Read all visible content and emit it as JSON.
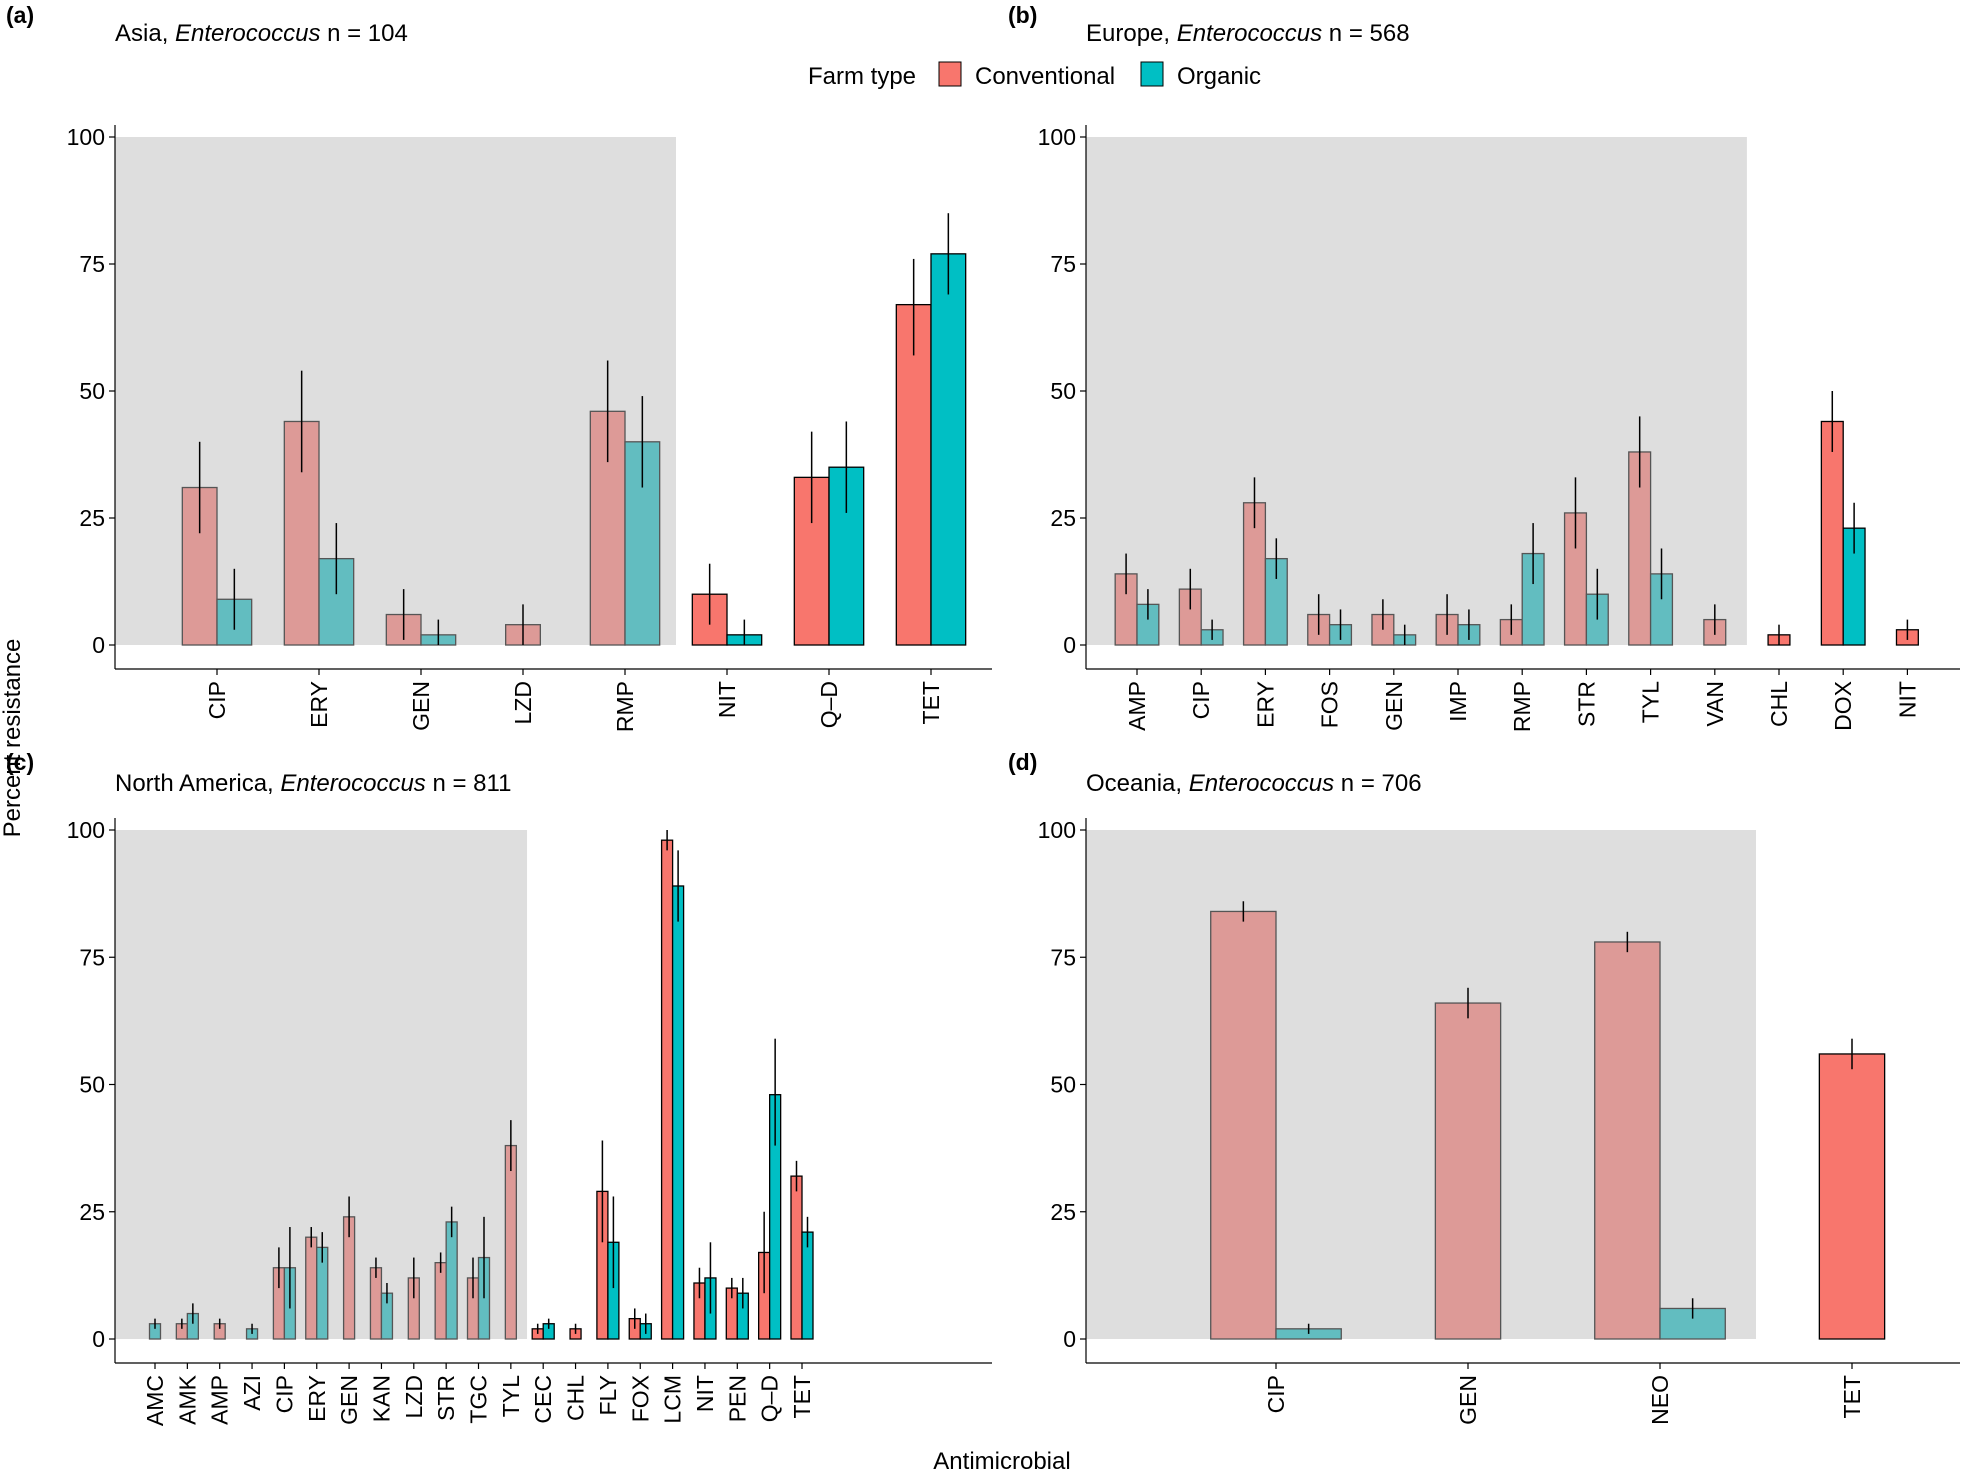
{
  "chart_data": {
    "type": "bar",
    "figure": {
      "ylabel": "Percent resistance",
      "xlabel": "Antimicrobial",
      "legend": {
        "title": "Farm type",
        "placement": "top-center",
        "entries": [
          {
            "name": "Conventional",
            "color": "#F8766D"
          },
          {
            "name": "Organic",
            "color": "#00BFC4"
          }
        ]
      },
      "colors": {
        "conventional": "#F8766D",
        "organic": "#00BFC4",
        "conventional_shaded": "#DD9A97",
        "organic_shaded": "#62BDC0",
        "shade_background": "#DEDEDE"
      }
    },
    "panels": [
      {
        "letter": "(a)",
        "region": "Asia, ",
        "organism": "Enterococcus",
        "n_label": " n = 104",
        "ylim": [
          0,
          100
        ],
        "yticks": [
          0,
          25,
          50,
          75,
          100
        ],
        "shaded_count": 5,
        "categories": [
          "CIP",
          "ERY",
          "GEN",
          "LZD",
          "RMP",
          "NIT",
          "Q–D",
          "TET"
        ],
        "series": [
          {
            "name": "Conventional",
            "values": [
              31,
              44,
              6,
              4,
              46,
              10,
              33,
              67
            ],
            "lower": [
              22,
              34,
              1,
              0,
              36,
              4,
              24,
              57
            ],
            "upper": [
              40,
              54,
              11,
              8,
              56,
              16,
              42,
              76
            ]
          },
          {
            "name": "Organic",
            "values": [
              9,
              17,
              2,
              null,
              40,
              2,
              35,
              77
            ],
            "lower": [
              3,
              10,
              0,
              null,
              31,
              0,
              26,
              69
            ],
            "upper": [
              15,
              24,
              5,
              null,
              49,
              5,
              44,
              85
            ]
          }
        ]
      },
      {
        "letter": "(b)",
        "region": "Europe, ",
        "organism": "Enterococcus",
        "n_label": " n = 568",
        "ylim": [
          0,
          100
        ],
        "yticks": [
          0,
          25,
          50,
          75,
          100
        ],
        "shaded_count": 10,
        "categories": [
          "AMP",
          "CIP",
          "ERY",
          "FOS",
          "GEN",
          "IMP",
          "RMP",
          "STR",
          "TYL",
          "VAN",
          "CHL",
          "DOX",
          "NIT"
        ],
        "series": [
          {
            "name": "Conventional",
            "values": [
              14,
              11,
              28,
              6,
              6,
              6,
              5,
              26,
              38,
              5,
              2,
              44,
              3
            ],
            "lower": [
              10,
              7,
              23,
              2,
              3,
              2,
              2,
              19,
              31,
              2,
              0,
              38,
              1
            ],
            "upper": [
              18,
              15,
              33,
              10,
              9,
              10,
              8,
              33,
              45,
              8,
              4,
              50,
              5
            ]
          },
          {
            "name": "Organic",
            "values": [
              8,
              3,
              17,
              4,
              2,
              4,
              18,
              10,
              14,
              null,
              null,
              23,
              null
            ],
            "lower": [
              5,
              1,
              13,
              1,
              0,
              1,
              12,
              5,
              9,
              null,
              null,
              18,
              null
            ],
            "upper": [
              11,
              5,
              21,
              7,
              4,
              7,
              24,
              15,
              19,
              null,
              null,
              28,
              null
            ]
          }
        ]
      },
      {
        "letter": "(c)",
        "region": "North America, ",
        "organism": "Enterococcus",
        "n_label": " n = 811",
        "ylim": [
          0,
          100
        ],
        "yticks": [
          0,
          25,
          50,
          75,
          100
        ],
        "shaded_count": 12,
        "categories": [
          "AMC",
          "AMK",
          "AMP",
          "AZI",
          "CIP",
          "ERY",
          "GEN",
          "KAN",
          "LZD",
          "STR",
          "TGC",
          "TYL",
          "CEC",
          "CHL",
          "FLY",
          "FOX",
          "LCM",
          "NIT",
          "PEN",
          "Q–D",
          "TET"
        ],
        "series": [
          {
            "name": "Conventional",
            "values": [
              null,
              3,
              3,
              null,
              14,
              20,
              24,
              14,
              12,
              15,
              12,
              38,
              2,
              2,
              29,
              4,
              98,
              11,
              10,
              17,
              32
            ],
            "lower": [
              null,
              2,
              2,
              null,
              10,
              18,
              20,
              12,
              8,
              13,
              8,
              33,
              1,
              1,
              19,
              2,
              96,
              8,
              8,
              9,
              29
            ],
            "upper": [
              null,
              4,
              4,
              null,
              18,
              22,
              28,
              16,
              16,
              17,
              16,
              43,
              3,
              3,
              39,
              6,
              100,
              14,
              12,
              25,
              35
            ]
          },
          {
            "name": "Organic",
            "values": [
              3,
              5,
              null,
              2,
              14,
              18,
              null,
              9,
              null,
              23,
              16,
              null,
              3,
              null,
              19,
              3,
              89,
              12,
              9,
              48,
              21
            ],
            "lower": [
              2,
              3,
              null,
              1,
              6,
              15,
              null,
              7,
              null,
              20,
              8,
              null,
              2,
              null,
              10,
              1,
              82,
              5,
              6,
              38,
              18
            ],
            "upper": [
              4,
              7,
              null,
              3,
              22,
              21,
              null,
              11,
              null,
              26,
              24,
              null,
              4,
              null,
              28,
              5,
              96,
              19,
              12,
              59,
              24
            ]
          }
        ]
      },
      {
        "letter": "(d)",
        "region": "Oceania, ",
        "organism": "Enterococcus",
        "n_label": " n = 706",
        "ylim": [
          0,
          100
        ],
        "yticks": [
          0,
          25,
          50,
          75,
          100
        ],
        "shaded_count": 3,
        "categories": [
          "CIP",
          "GEN",
          "NEO",
          "TET"
        ],
        "series": [
          {
            "name": "Conventional",
            "values": [
              84,
              66,
              78,
              56
            ],
            "lower": [
              82,
              63,
              76,
              53
            ],
            "upper": [
              86,
              69,
              80,
              59
            ]
          },
          {
            "name": "Organic",
            "values": [
              2,
              null,
              6,
              null
            ],
            "lower": [
              1,
              null,
              4,
              null
            ],
            "upper": [
              3,
              null,
              8,
              null
            ]
          }
        ]
      }
    ]
  }
}
